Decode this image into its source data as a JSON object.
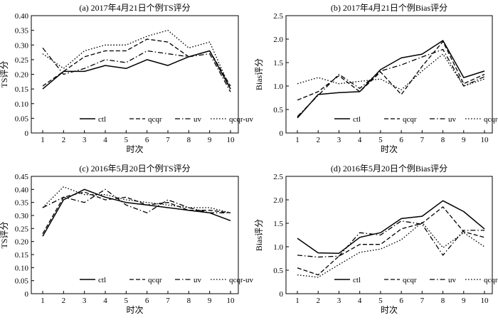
{
  "chart_data": [
    {
      "type": "line",
      "title": "(a) 2017年4月21日个例TS评分",
      "xlabel": "时次",
      "ylabel": "TS评分",
      "categories": [
        "1",
        "2",
        "3",
        "4",
        "5",
        "6",
        "7",
        "8",
        "9",
        "10"
      ],
      "ylim": [
        0,
        0.4
      ],
      "yticks": [
        "0",
        "0.05",
        "0.10",
        "0.15",
        "0.20",
        "0.25",
        "0.30",
        "0.35",
        "0.40"
      ],
      "legend_position": "bottom",
      "series": [
        {
          "name": "ctl",
          "style": "solid",
          "values": [
            0.15,
            0.21,
            0.21,
            0.23,
            0.22,
            0.25,
            0.23,
            0.26,
            0.28,
            0.15
          ]
        },
        {
          "name": "qcqr",
          "style": "dash",
          "values": [
            0.16,
            0.21,
            0.26,
            0.28,
            0.28,
            0.32,
            0.31,
            0.26,
            0.28,
            0.16
          ]
        },
        {
          "name": "uv",
          "style": "dashdot",
          "values": [
            0.29,
            0.2,
            0.22,
            0.25,
            0.24,
            0.28,
            0.27,
            0.26,
            0.27,
            0.14
          ]
        },
        {
          "name": "qcqr-uv",
          "style": "dot",
          "values": [
            0.27,
            0.22,
            0.28,
            0.3,
            0.3,
            0.33,
            0.35,
            0.29,
            0.31,
            0.15
          ]
        }
      ]
    },
    {
      "type": "line",
      "title": "(b) 2017年4月21日个例Bias评分",
      "xlabel": "时次",
      "ylabel": "Bias评分",
      "categories": [
        "1",
        "2",
        "3",
        "4",
        "5",
        "6",
        "7",
        "8",
        "9",
        "10"
      ],
      "ylim": [
        0,
        2.5
      ],
      "yticks": [
        "0",
        "0.5",
        "1.0",
        "1.5",
        "2.0",
        "2.5"
      ],
      "legend_position": "bottom",
      "series": [
        {
          "name": "ctl",
          "style": "solid",
          "values": [
            0.32,
            0.82,
            0.86,
            0.88,
            1.35,
            1.6,
            1.68,
            1.97,
            1.18,
            1.32
          ]
        },
        {
          "name": "qcqr",
          "style": "dash",
          "values": [
            0.7,
            0.88,
            1.22,
            0.88,
            1.3,
            0.82,
            1.42,
            1.95,
            1.05,
            1.25
          ]
        },
        {
          "name": "uv",
          "style": "dashdot",
          "values": [
            0.35,
            0.8,
            1.25,
            0.95,
            1.32,
            1.45,
            1.62,
            1.78,
            1.0,
            1.2
          ]
        },
        {
          "name": "qcqr-uv",
          "style": "dot",
          "values": [
            1.05,
            1.18,
            1.05,
            1.1,
            1.15,
            0.92,
            1.32,
            1.68,
            1.0,
            1.15
          ]
        }
      ]
    },
    {
      "type": "line",
      "title": "(c) 2016年5月20日个例TS评分",
      "xlabel": "时次",
      "ylabel": "TS评分",
      "categories": [
        "1",
        "2",
        "3",
        "4",
        "5",
        "6",
        "7",
        "8",
        "9",
        "10"
      ],
      "ylim": [
        0,
        0.45
      ],
      "yticks": [
        "0",
        "0.05",
        "0.10",
        "0.15",
        "0.20",
        "0.25",
        "0.30",
        "0.35",
        "0.40",
        "0.45"
      ],
      "legend_position": "bottom",
      "series": [
        {
          "name": "ctl",
          "style": "solid",
          "values": [
            0.22,
            0.36,
            0.4,
            0.37,
            0.35,
            0.34,
            0.33,
            0.32,
            0.31,
            0.28
          ]
        },
        {
          "name": "qcqr",
          "style": "dash",
          "values": [
            0.23,
            0.37,
            0.39,
            0.36,
            0.37,
            0.34,
            0.35,
            0.32,
            0.32,
            0.31
          ]
        },
        {
          "name": "uv",
          "style": "dashdot",
          "values": [
            0.33,
            0.37,
            0.35,
            0.4,
            0.34,
            0.31,
            0.36,
            0.33,
            0.31,
            0.31
          ]
        },
        {
          "name": "qcqr-uv",
          "style": "dot",
          "values": [
            0.33,
            0.41,
            0.38,
            0.38,
            0.36,
            0.35,
            0.34,
            0.33,
            0.33,
            0.31
          ]
        }
      ]
    },
    {
      "type": "line",
      "title": "(d) 2016年5月20日个例Bias评分",
      "xlabel": "时次",
      "ylabel": "Bias评分",
      "categories": [
        "1",
        "2",
        "3",
        "4",
        "5",
        "6",
        "7",
        "8",
        "9",
        "10"
      ],
      "ylim": [
        0,
        2.5
      ],
      "yticks": [
        "0",
        "0.5",
        "1.0",
        "1.5",
        "2.0",
        "2.5"
      ],
      "legend_position": "bottom",
      "series": [
        {
          "name": "ctl",
          "style": "solid",
          "values": [
            1.18,
            0.87,
            0.86,
            1.2,
            1.3,
            1.6,
            1.65,
            1.98,
            1.75,
            1.38
          ]
        },
        {
          "name": "qcqr",
          "style": "dash",
          "values": [
            0.55,
            0.4,
            0.8,
            1.05,
            1.05,
            1.38,
            1.5,
            1.85,
            1.32,
            1.2
          ]
        },
        {
          "name": "uv",
          "style": "dashdot",
          "values": [
            0.82,
            0.78,
            0.8,
            1.3,
            1.25,
            1.55,
            1.48,
            0.82,
            1.35,
            1.35
          ]
        },
        {
          "name": "qcqr-uv",
          "style": "dot",
          "values": [
            0.4,
            0.35,
            0.62,
            0.88,
            0.95,
            1.15,
            1.52,
            0.98,
            1.3,
            1.0
          ]
        }
      ]
    }
  ]
}
